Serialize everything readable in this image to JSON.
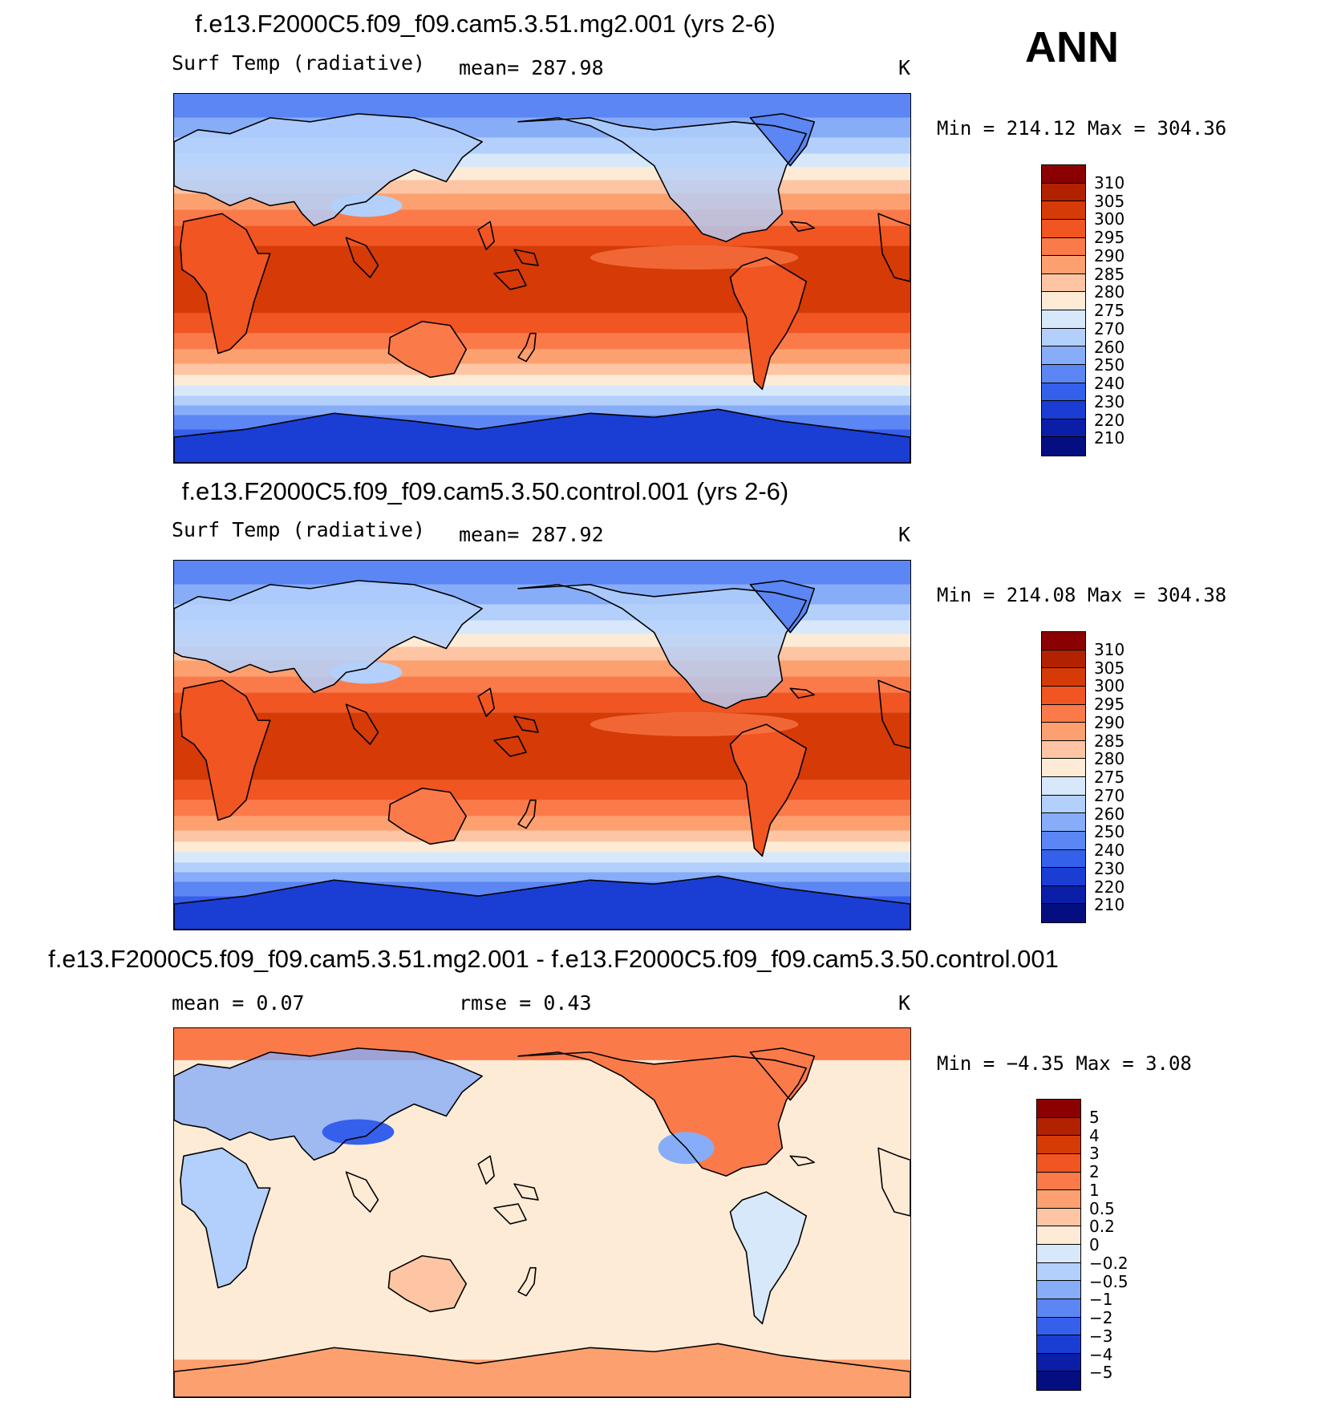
{
  "season": "ANN",
  "panels": [
    {
      "title": "f.e13.F2000C5.f09_f09.cam5.3.51.mg2.001 (yrs 2-6)",
      "left_label": "Surf Temp (radiative)",
      "center_label": "mean= 287.98",
      "units": "K",
      "minmax": "Min = 214.12 Max = 304.36",
      "colorbar": {
        "labels": [
          "310",
          "305",
          "300",
          "295",
          "290",
          "285",
          "280",
          "275",
          "270",
          "260",
          "250",
          "240",
          "230",
          "220",
          "210"
        ],
        "colors": [
          "#8b0000",
          "#b22200",
          "#d63a06",
          "#f05522",
          "#fb7a4a",
          "#fca070",
          "#fdc5a3",
          "#fdebd6",
          "#d7e8fb",
          "#b3cffb",
          "#87adf8",
          "#5b86f3",
          "#3560ec",
          "#1a3dd4",
          "#0b1ea8",
          "#050e80"
        ]
      },
      "map_type": "absolute"
    },
    {
      "title": "f.e13.F2000C5.f09_f09.cam5.3.50.control.001 (yrs 2-6)",
      "left_label": "Surf Temp (radiative)",
      "center_label": "mean= 287.92",
      "units": "K",
      "minmax": "Min = 214.08 Max = 304.38",
      "colorbar": {
        "labels": [
          "310",
          "305",
          "300",
          "295",
          "290",
          "285",
          "280",
          "275",
          "270",
          "260",
          "250",
          "240",
          "230",
          "220",
          "210"
        ],
        "colors": [
          "#8b0000",
          "#b22200",
          "#d63a06",
          "#f05522",
          "#fb7a4a",
          "#fca070",
          "#fdc5a3",
          "#fdebd6",
          "#d7e8fb",
          "#b3cffb",
          "#87adf8",
          "#5b86f3",
          "#3560ec",
          "#1a3dd4",
          "#0b1ea8",
          "#050e80"
        ]
      },
      "map_type": "absolute"
    },
    {
      "title": "f.e13.F2000C5.f09_f09.cam5.3.51.mg2.001 - f.e13.F2000C5.f09_f09.cam5.3.50.control.001",
      "left_label": "mean =    0.07",
      "center_label": "rmse =    0.43",
      "units": "K",
      "minmax": "Min =   −4.35 Max =    3.08",
      "colorbar": {
        "labels": [
          "5",
          "4",
          "3",
          "2",
          "1",
          "0.5",
          "0.2",
          "0",
          "−0.2",
          "−0.5",
          "−1",
          "−2",
          "−3",
          "−4",
          "−5"
        ],
        "colors": [
          "#8b0000",
          "#b22200",
          "#d63a06",
          "#f05522",
          "#fb7a4a",
          "#fca070",
          "#fdc5a3",
          "#fdebd6",
          "#d7e8fb",
          "#b3cffb",
          "#87adf8",
          "#5b86f3",
          "#3560ec",
          "#1a3dd4",
          "#0b1ea8",
          "#050e80"
        ]
      },
      "map_type": "difference"
    }
  ]
}
